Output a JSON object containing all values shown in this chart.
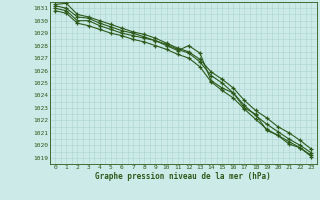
{
  "x": [
    0,
    1,
    2,
    3,
    4,
    5,
    6,
    7,
    8,
    9,
    10,
    11,
    12,
    13,
    14,
    15,
    16,
    17,
    18,
    19,
    20,
    21,
    22,
    23
  ],
  "line1": [
    1031.0,
    1030.8,
    1030.0,
    1030.0,
    1029.6,
    1029.3,
    1029.0,
    1028.8,
    1028.6,
    1028.4,
    1028.0,
    1027.6,
    1028.0,
    1027.4,
    1025.2,
    1024.6,
    1024.2,
    1023.0,
    1022.5,
    1021.2,
    1020.8,
    1020.1,
    1019.8,
    1019.1
  ],
  "line2": [
    1031.2,
    1031.0,
    1030.3,
    1030.2,
    1029.8,
    1029.5,
    1029.2,
    1029.0,
    1028.7,
    1028.4,
    1028.1,
    1027.7,
    1027.4,
    1026.7,
    1025.6,
    1025.0,
    1024.2,
    1023.2,
    1022.4,
    1021.7,
    1021.1,
    1020.5,
    1020.0,
    1019.4
  ],
  "line3": [
    1030.8,
    1030.6,
    1029.8,
    1029.6,
    1029.3,
    1029.0,
    1028.8,
    1028.5,
    1028.3,
    1028.0,
    1027.7,
    1027.3,
    1027.0,
    1026.3,
    1025.1,
    1024.4,
    1023.8,
    1022.9,
    1022.1,
    1021.3,
    1020.8,
    1020.3,
    1019.8,
    1019.2
  ],
  "line4": [
    1031.3,
    1031.4,
    1030.5,
    1030.3,
    1030.0,
    1029.7,
    1029.4,
    1029.1,
    1028.9,
    1028.6,
    1028.2,
    1027.8,
    1027.5,
    1026.9,
    1025.9,
    1025.3,
    1024.6,
    1023.6,
    1022.8,
    1022.2,
    1021.5,
    1021.0,
    1020.4,
    1019.7
  ],
  "bg_color": "#cceae7",
  "grid_minor_color": "#aad4d0",
  "grid_major_color": "#88bbbb",
  "line_color": "#2d5a1b",
  "text_color": "#2d5a1b",
  "xlabel": "Graphe pression niveau de la mer (hPa)",
  "ylim_min": 1019,
  "ylim_max": 1031,
  "xlim_min": 0,
  "xlim_max": 23
}
